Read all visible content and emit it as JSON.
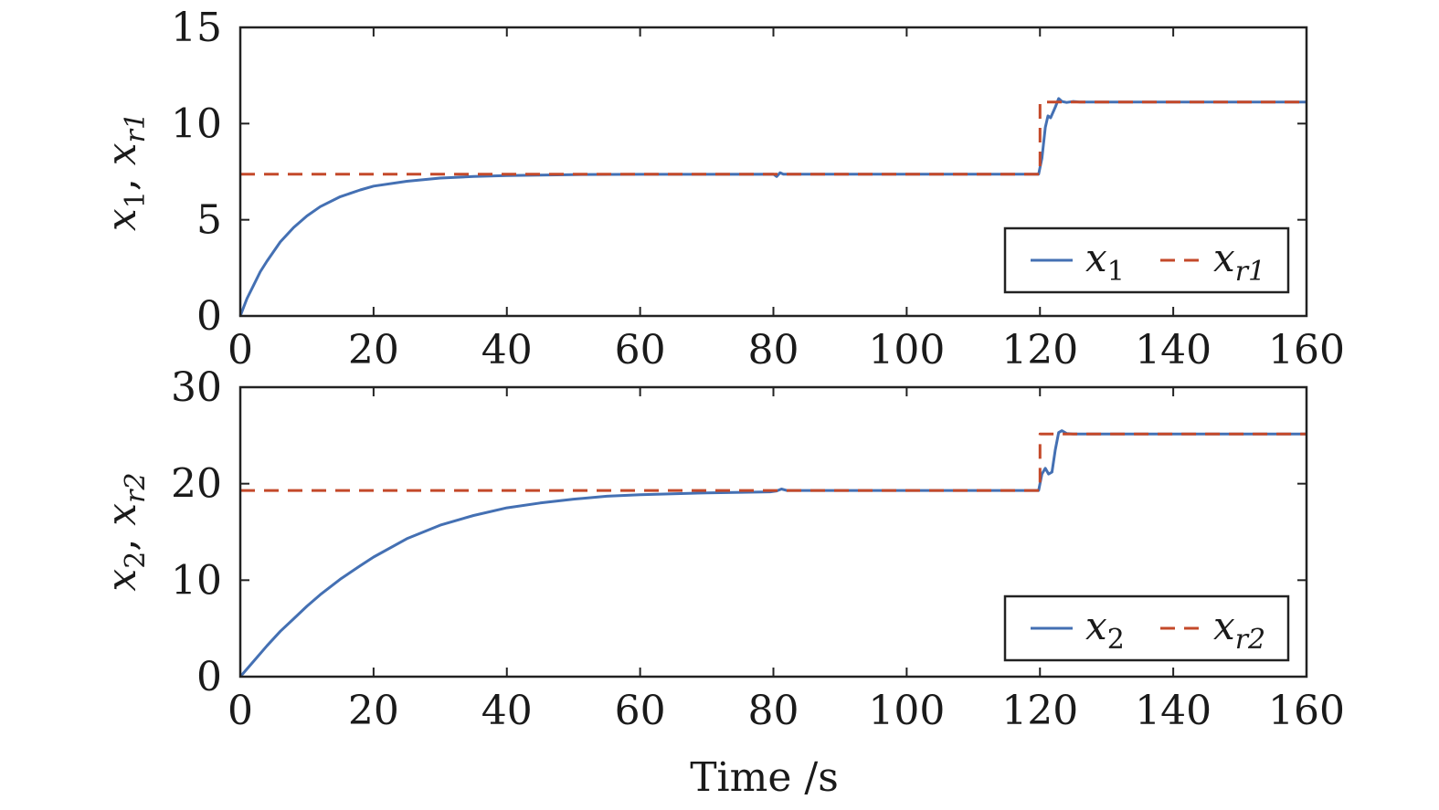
{
  "chart_data": [
    {
      "type": "line",
      "ylabel": {
        "main": "x",
        "sub": "1",
        "sep": ", ",
        "main2": "x",
        "sub2": "r1"
      },
      "xlim": [
        0,
        160
      ],
      "ylim": [
        0,
        15
      ],
      "xticks": [
        0,
        20,
        40,
        60,
        80,
        100,
        120,
        140,
        160
      ],
      "yticks": [
        0,
        5,
        10,
        15
      ],
      "legend_position": "bottom-right",
      "series": [
        {
          "name": "x1",
          "legend": {
            "main": "x",
            "sub": "1"
          },
          "style": "solid",
          "color": "#4470b3",
          "points": [
            [
              0,
              0
            ],
            [
              1,
              0.9
            ],
            [
              2,
              1.6
            ],
            [
              3,
              2.3
            ],
            [
              4,
              2.85
            ],
            [
              6,
              3.85
            ],
            [
              8,
              4.6
            ],
            [
              10,
              5.2
            ],
            [
              12,
              5.68
            ],
            [
              15,
              6.2
            ],
            [
              18,
              6.55
            ],
            [
              20,
              6.75
            ],
            [
              25,
              7.0
            ],
            [
              30,
              7.17
            ],
            [
              35,
              7.25
            ],
            [
              40,
              7.3
            ],
            [
              50,
              7.35
            ],
            [
              60,
              7.36
            ],
            [
              80,
              7.37
            ],
            [
              80.5,
              7.25
            ],
            [
              81,
              7.45
            ],
            [
              81.5,
              7.37
            ],
            [
              100,
              7.37
            ],
            [
              119.8,
              7.37
            ],
            [
              120.3,
              8.2
            ],
            [
              120.8,
              9.8
            ],
            [
              121.2,
              10.4
            ],
            [
              121.6,
              10.3
            ],
            [
              122.3,
              10.85
            ],
            [
              122.8,
              11.3
            ],
            [
              123.3,
              11.15
            ],
            [
              124,
              11.1
            ],
            [
              125,
              11.15
            ],
            [
              126,
              11.12
            ],
            [
              140,
              11.12
            ],
            [
              160,
              11.12
            ]
          ]
        },
        {
          "name": "xr1",
          "legend": {
            "main": "x",
            "sub": "r1"
          },
          "style": "dashed",
          "color": "#c4492a",
          "points": [
            [
              0,
              7.37
            ],
            [
              120,
              7.37
            ],
            [
              120,
              11.12
            ],
            [
              160,
              11.12
            ]
          ]
        }
      ]
    },
    {
      "type": "line",
      "xlabel": "Time /s",
      "ylabel": {
        "main": "x",
        "sub": "2",
        "sep": ", ",
        "main2": "x",
        "sub2": "r2"
      },
      "xlim": [
        0,
        160
      ],
      "ylim": [
        0,
        30
      ],
      "xticks": [
        0,
        20,
        40,
        60,
        80,
        100,
        120,
        140,
        160
      ],
      "yticks": [
        0,
        10,
        20,
        30
      ],
      "legend_position": "bottom-right",
      "series": [
        {
          "name": "x2",
          "legend": {
            "main": "x",
            "sub": "2"
          },
          "style": "solid",
          "color": "#4470b3",
          "points": [
            [
              0,
              0
            ],
            [
              2,
              1.6
            ],
            [
              4,
              3.2
            ],
            [
              6,
              4.7
            ],
            [
              8,
              6.0
            ],
            [
              10,
              7.3
            ],
            [
              12,
              8.5
            ],
            [
              15,
              10.1
            ],
            [
              18,
              11.5
            ],
            [
              20,
              12.4
            ],
            [
              25,
              14.3
            ],
            [
              30,
              15.7
            ],
            [
              35,
              16.7
            ],
            [
              40,
              17.5
            ],
            [
              45,
              18.0
            ],
            [
              50,
              18.4
            ],
            [
              55,
              18.7
            ],
            [
              60,
              18.85
            ],
            [
              70,
              19.05
            ],
            [
              79.5,
              19.15
            ],
            [
              80.5,
              19.25
            ],
            [
              81.2,
              19.45
            ],
            [
              82,
              19.3
            ],
            [
              100,
              19.3
            ],
            [
              119.8,
              19.3
            ],
            [
              120.3,
              21.0
            ],
            [
              120.8,
              21.6
            ],
            [
              121.3,
              21.0
            ],
            [
              121.8,
              21.2
            ],
            [
              122.3,
              23.5
            ],
            [
              122.8,
              25.3
            ],
            [
              123.3,
              25.5
            ],
            [
              124,
              25.2
            ],
            [
              125,
              25.15
            ],
            [
              140,
              25.15
            ],
            [
              160,
              25.15
            ]
          ]
        },
        {
          "name": "xr2",
          "legend": {
            "main": "x",
            "sub": "r2"
          },
          "style": "dashed",
          "color": "#c4492a",
          "points": [
            [
              0,
              19.3
            ],
            [
              120,
              19.3
            ],
            [
              120,
              25.15
            ],
            [
              160,
              25.15
            ]
          ]
        }
      ]
    }
  ]
}
